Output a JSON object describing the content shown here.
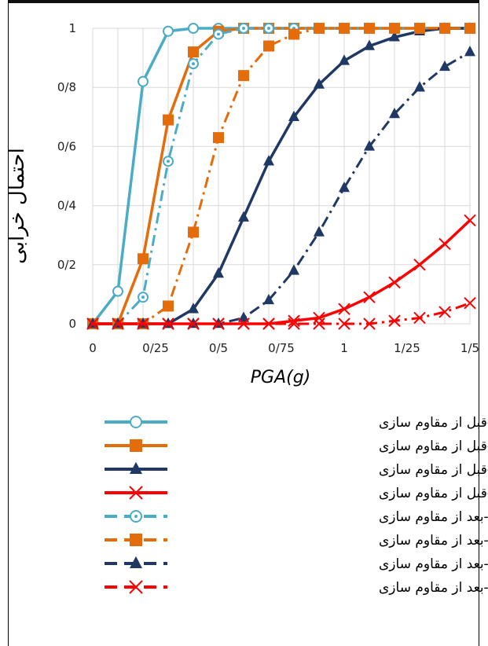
{
  "chart_data": {
    "type": "line",
    "ylabel": "احتمال خرابی",
    "xlabel": "PGA(g)",
    "xlim": [
      0,
      1.5
    ],
    "ylim": [
      0,
      1
    ],
    "grid": true,
    "legend_position": "bottom",
    "x_ticks": [
      "0",
      "0/25",
      "0/5",
      "0/75",
      "1",
      "1/25",
      "1/5"
    ],
    "y_ticks": [
      "0",
      "0/2",
      "0/4",
      "0/6",
      "0/8",
      "1"
    ],
    "x": [
      0,
      0.1,
      0.2,
      0.3,
      0.4,
      0.5,
      0.6,
      0.7,
      0.8,
      0.9,
      1.0,
      1.1,
      1.2,
      1.3,
      1.4,
      1.5
    ],
    "series": [
      {
        "name": "خرابی کم-قبل از مقاوم سازی",
        "color": "#4bacc6",
        "dash": "solid",
        "marker": "circle-open",
        "values": [
          0,
          0.11,
          0.82,
          0.99,
          1,
          1,
          1,
          1,
          1,
          1,
          1,
          1,
          1,
          1,
          1,
          1
        ]
      },
      {
        "name": "خرابی متوسط-قبل از مقاوم سازی",
        "color": "#e46c0a",
        "dash": "solid",
        "marker": "square",
        "values": [
          0,
          0,
          0.22,
          0.69,
          0.92,
          0.99,
          1,
          1,
          1,
          1,
          1,
          1,
          1,
          1,
          1,
          1
        ]
      },
      {
        "name": "خرابی زیاد-قبل از مقاوم سازی",
        "color": "#1f3864",
        "dash": "solid",
        "marker": "triangle",
        "values": [
          0,
          0,
          0,
          0,
          0.05,
          0.17,
          0.36,
          0.55,
          0.7,
          0.81,
          0.89,
          0.94,
          0.97,
          0.99,
          1,
          1
        ]
      },
      {
        "name": "خرابی کامل-قبل از مقاوم سازی",
        "color": "#ff0000",
        "dash": "solid",
        "marker": "x",
        "values": [
          0,
          0,
          0,
          0,
          0,
          0,
          0,
          0,
          0.01,
          0.02,
          0.05,
          0.09,
          0.14,
          0.2,
          0.27,
          0.35
        ]
      },
      {
        "name": "خرابی کم-بعد از مقاوم سازی",
        "color": "#4bacc6",
        "dash": "dashdot",
        "marker": "circle-dot",
        "values": [
          0,
          0,
          0.09,
          0.55,
          0.88,
          0.98,
          1,
          1,
          1,
          1,
          1,
          1,
          1,
          1,
          1,
          1
        ]
      },
      {
        "name": "خرابی متوسط-بعد از مقاوم سازی",
        "color": "#e46c0a",
        "dash": "dashdot",
        "marker": "square",
        "values": [
          0,
          0,
          0,
          0.06,
          0.31,
          0.63,
          0.84,
          0.94,
          0.98,
          1,
          1,
          1,
          1,
          1,
          1,
          1
        ]
      },
      {
        "name": "خرابی زیاد-بعد از مقاوم سازی",
        "color": "#1f3864",
        "dash": "dashdot",
        "marker": "triangle",
        "values": [
          0,
          0,
          0,
          0,
          0,
          0,
          0.02,
          0.08,
          0.18,
          0.31,
          0.46,
          0.6,
          0.71,
          0.8,
          0.87,
          0.92
        ]
      },
      {
        "name": "خرابی کامل-بعد از مقاوم سازی",
        "color": "#ff0000",
        "dash": "dashdot",
        "marker": "x",
        "values": [
          0,
          0,
          0,
          0,
          0,
          0,
          0,
          0,
          0,
          0,
          0,
          0,
          0.01,
          0.02,
          0.04,
          0.07
        ]
      }
    ]
  }
}
